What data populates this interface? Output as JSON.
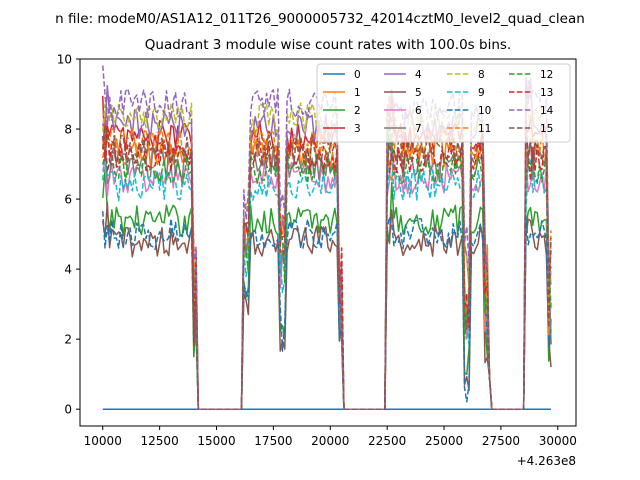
{
  "figure": {
    "suptitle": "n file: modeM0/AS1A12_011T26_9000005732_42014cztM0_level2_quad_clean",
    "title": "Quadrant 3 module wise count rates with 100.0s bins.",
    "offset_label": "+4.263e8"
  },
  "chart_data": {
    "type": "line",
    "xlabel": "",
    "ylabel": "",
    "xlim": [
      9000,
      30800
    ],
    "ylim": [
      -0.48,
      10.0
    ],
    "xticks": [
      10000,
      12500,
      15000,
      17500,
      20000,
      22500,
      25000,
      27500,
      30000
    ],
    "xtick_labels": [
      "10000",
      "12500",
      "15000",
      "17500",
      "20000",
      "22500",
      "25000",
      "27500",
      "30000"
    ],
    "yticks": [
      0,
      2,
      4,
      6,
      8,
      10
    ],
    "ytick_labels": [
      "0",
      "2",
      "4",
      "6",
      "8",
      "10"
    ],
    "grid": false,
    "legend_position": "top-right",
    "legend_columns": 4,
    "bin_seconds": 100,
    "series": [
      {
        "name": "0",
        "color": "#1f77b4",
        "dash": "solid",
        "level": 0.0,
        "flat": true
      },
      {
        "name": "1",
        "color": "#ff7f0e",
        "dash": "solid",
        "level": 7.3
      },
      {
        "name": "2",
        "color": "#2ca02c",
        "dash": "solid",
        "level": 5.4
      },
      {
        "name": "3",
        "color": "#d62728",
        "dash": "solid",
        "level": 7.8
      },
      {
        "name": "4",
        "color": "#9467bd",
        "dash": "solid",
        "level": 8.1
      },
      {
        "name": "5",
        "color": "#8c564b",
        "dash": "solid",
        "level": 4.8
      },
      {
        "name": "6",
        "color": "#e377c2",
        "dash": "solid",
        "level": 6.6
      },
      {
        "name": "7",
        "color": "#7f7f7f",
        "dash": "solid",
        "level": 7.0
      },
      {
        "name": "8",
        "color": "#bcbd22",
        "dash": "dashed",
        "level": 8.3
      },
      {
        "name": "9",
        "color": "#17becf",
        "dash": "dashed",
        "level": 6.4
      },
      {
        "name": "10",
        "color": "#1f77b4",
        "dash": "dashed",
        "level": 5.0
      },
      {
        "name": "11",
        "color": "#ff7f0e",
        "dash": "dashed",
        "level": 7.6
      },
      {
        "name": "12",
        "color": "#2ca02c",
        "dash": "dashed",
        "level": 6.9
      },
      {
        "name": "13",
        "color": "#d62728",
        "dash": "dashed",
        "level": 7.2
      },
      {
        "name": "14",
        "color": "#9467bd",
        "dash": "dashed",
        "level": 8.7
      },
      {
        "name": "15",
        "color": "#8c564b",
        "dash": "dashed",
        "level": 7.4
      }
    ],
    "active_intervals": [
      [
        10000,
        14100
      ],
      [
        16200,
        20500
      ],
      [
        22500,
        26900
      ],
      [
        28600,
        29700
      ]
    ],
    "series_x_range": [
      10000,
      29700
    ]
  }
}
